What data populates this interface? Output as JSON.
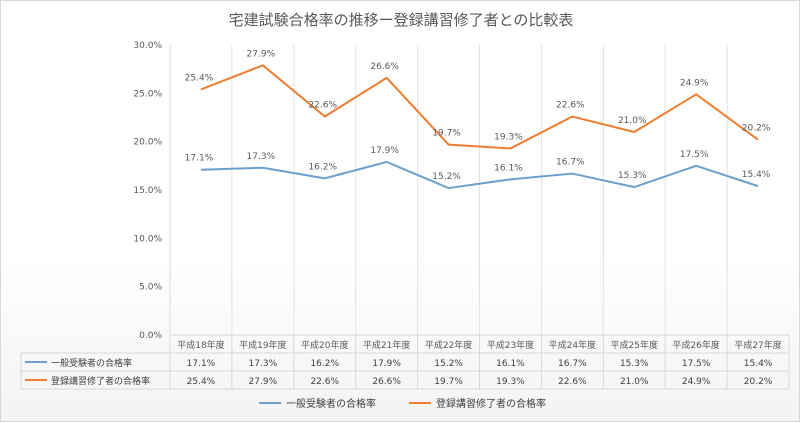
{
  "chart_data": {
    "type": "line",
    "title": "宅建試験合格率の推移ー登録講習修了者との比較表",
    "categories": [
      "平成18年度",
      "平成19年度",
      "平成20年度",
      "平成21年度",
      "平成22年度",
      "平成23年度",
      "平成24年度",
      "平成25年度",
      "平成26年度",
      "平成27年度"
    ],
    "ylim": [
      0,
      30
    ],
    "yticks": [
      "0.0%",
      "5.0%",
      "10.0%",
      "15.0%",
      "20.0%",
      "25.0%",
      "30.0%"
    ],
    "grid": false,
    "legend_position": "bottom",
    "data_table": true,
    "series": [
      {
        "name": "一般受験者の合格率",
        "color": "#6d9fcd",
        "values": [
          17.1,
          17.3,
          16.2,
          17.9,
          15.2,
          16.1,
          16.7,
          15.3,
          17.5,
          15.4
        ],
        "labels": [
          "17.1%",
          "17.3%",
          "16.2%",
          "17.9%",
          "15.2%",
          "16.1%",
          "16.7%",
          "15.3%",
          "17.5%",
          "15.4%"
        ]
      },
      {
        "name": "登録講習修了者の合格率",
        "color": "#ed7d31",
        "values": [
          25.4,
          27.9,
          22.6,
          26.6,
          19.7,
          19.3,
          22.6,
          21.0,
          24.9,
          20.2
        ],
        "labels": [
          "25.4%",
          "27.9%",
          "22.6%",
          "26.6%",
          "19.7%",
          "19.3%",
          "22.6%",
          "21.0%",
          "24.9%",
          "20.2%"
        ]
      }
    ]
  }
}
